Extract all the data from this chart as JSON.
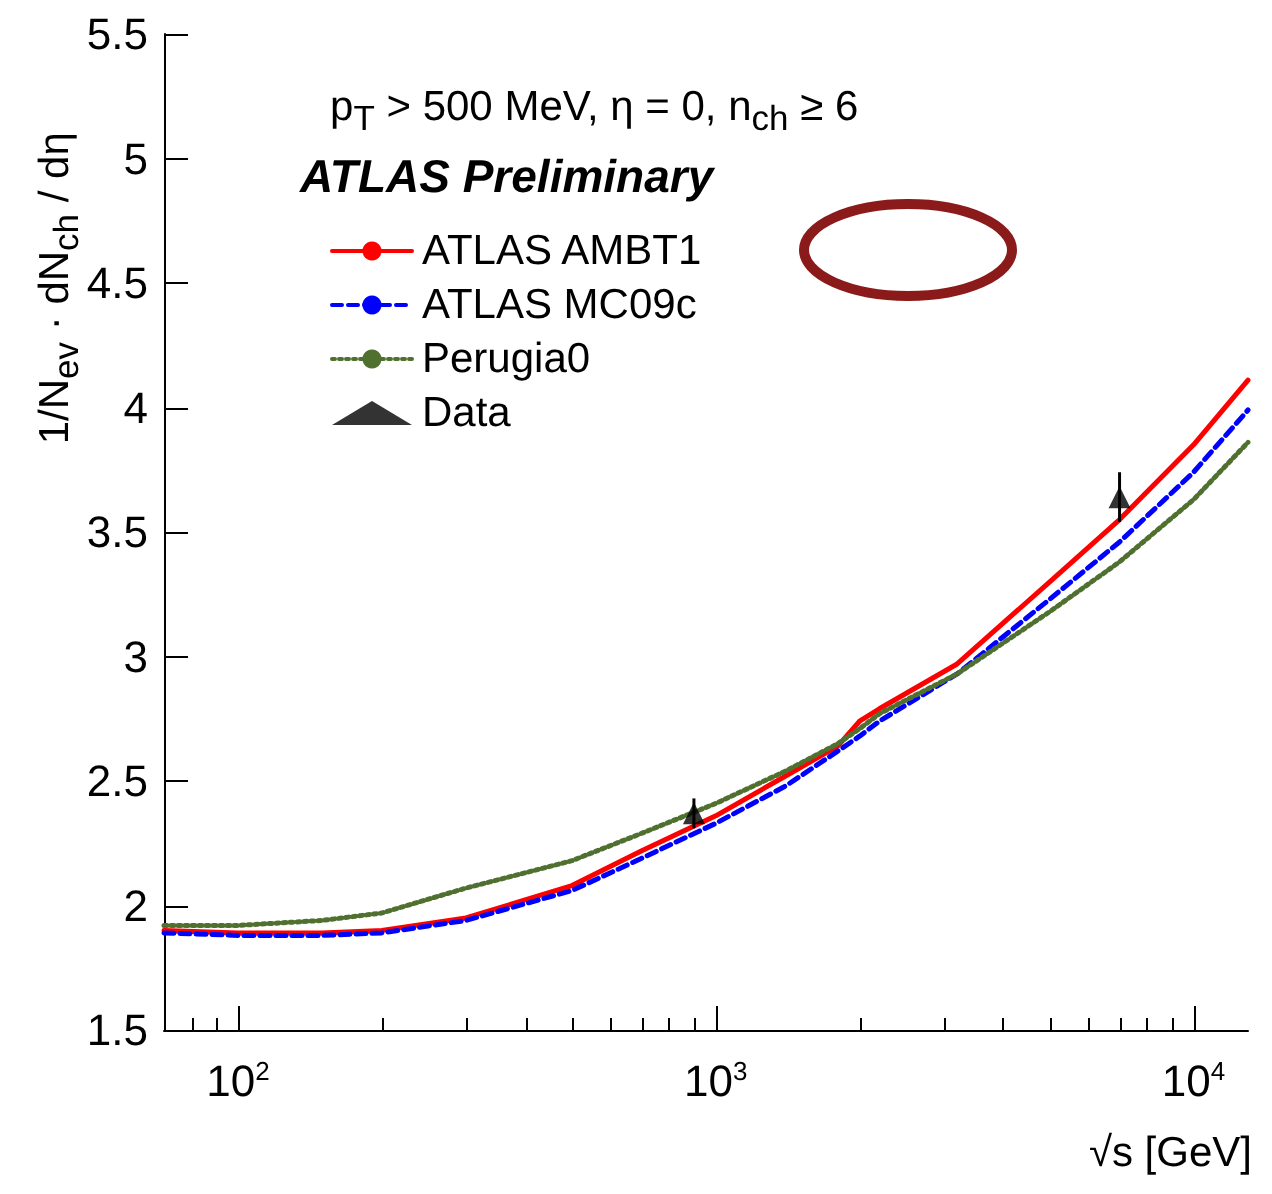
{
  "chart_data": {
    "type": "line",
    "xlabel": "√s [GeV]",
    "ylabel": "1/N$_{ev}$ · dN$_{ch}$ / dη",
    "annotations": [
      "p$_{T}$ > 500 MeV, η = 0, n$_{ch}$ ≥ 6",
      "ATLAS Preliminary"
    ],
    "log": "x",
    "xlim": [
      70,
      13000
    ],
    "xticks": [
      {
        "value": 100,
        "label": "10$^{2}$"
      },
      {
        "value": 1000,
        "label": "10$^{3}$"
      },
      {
        "value": 10000,
        "label": "10$^{4}$"
      }
    ],
    "ylim": [
      1.5,
      5.5
    ],
    "yticks": [
      1.5,
      2,
      2.5,
      3,
      3.5,
      4,
      4.5,
      5,
      5.5
    ],
    "grid": false,
    "legend": "top left",
    "series": [
      {
        "name": "ATLAS AMBT1",
        "color": "#ff0000",
        "line_style": "solid",
        "x": [
          70,
          100,
          150,
          200,
          300,
          500,
          700,
          1000,
          1400,
          1800,
          2000,
          2200,
          3200,
          5000,
          7000,
          10000,
          13000
        ],
        "values": [
          1.9,
          1.89,
          1.89,
          1.9,
          1.95,
          2.08,
          2.22,
          2.36,
          2.52,
          2.64,
          2.74,
          2.79,
          2.97,
          3.3,
          3.55,
          3.85,
          4.11
        ]
      },
      {
        "name": "ATLAS MC09c",
        "color": "#0000ff",
        "line_style": "dashed",
        "x": [
          70,
          100,
          150,
          200,
          300,
          500,
          700,
          1000,
          1400,
          1800,
          2000,
          2200,
          3200,
          5000,
          7000,
          10000,
          13000
        ],
        "values": [
          1.89,
          1.88,
          1.88,
          1.89,
          1.94,
          2.06,
          2.19,
          2.33,
          2.48,
          2.62,
          2.68,
          2.74,
          2.93,
          3.23,
          3.46,
          3.74,
          3.99
        ]
      },
      {
        "name": "Perugia0",
        "color": "#507030",
        "line_style": "dotted",
        "x": [
          70,
          100,
          150,
          200,
          300,
          500,
          700,
          1000,
          1400,
          1800,
          2000,
          2200,
          3200,
          5000,
          7000,
          10000,
          13000
        ],
        "values": [
          1.92,
          1.92,
          1.94,
          1.97,
          2.07,
          2.18,
          2.29,
          2.41,
          2.54,
          2.65,
          2.71,
          2.77,
          2.93,
          3.18,
          3.38,
          3.63,
          3.86
        ]
      },
      {
        "name": "Data",
        "type": "scatter",
        "marker": "triangle",
        "color": "#000000",
        "x": [
          900,
          7000
        ],
        "values": [
          2.37,
          3.64
        ],
        "errors": [
          0.06,
          0.1
        ]
      }
    ]
  }
}
